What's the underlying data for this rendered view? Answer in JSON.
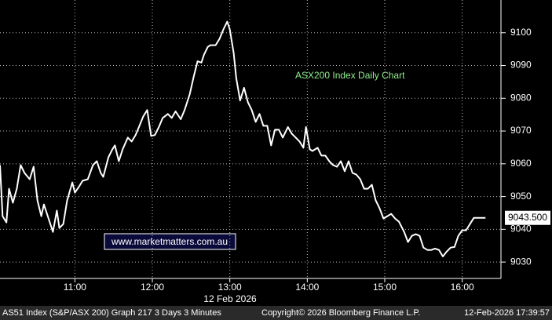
{
  "chart_data": {
    "type": "line",
    "color": "#ffffff",
    "grid": true,
    "xlabel": "12 Feb 2026",
    "annotations": [
      "ASX200 Index Daily Chart",
      "www.marketmatters.com.au"
    ],
    "last_value": {
      "value": 9043.5,
      "label": "9043.500"
    },
    "xlim": [
      602,
      990
    ],
    "xticks": [
      {
        "value": 660,
        "label": "11:00"
      },
      {
        "value": 720,
        "label": "12:00"
      },
      {
        "value": 780,
        "label": "13:00"
      },
      {
        "value": 840,
        "label": "14:00"
      },
      {
        "value": 900,
        "label": "15:00"
      },
      {
        "value": 960,
        "label": "16:00"
      }
    ],
    "ylim": [
      9025,
      9110
    ],
    "yticks": [
      9030,
      9040,
      9050,
      9060,
      9070,
      9080,
      9090,
      9100
    ],
    "x": [
      602,
      604,
      607,
      609,
      612,
      615,
      618,
      621,
      625,
      628,
      631,
      634,
      636,
      640,
      643,
      646,
      648,
      651,
      654,
      658,
      660,
      663,
      666,
      670,
      674,
      677,
      680,
      682,
      686,
      689,
      691,
      694,
      697,
      701,
      704,
      707,
      710,
      713,
      716,
      719,
      722,
      725,
      728,
      732,
      735,
      738,
      742,
      745,
      749,
      752,
      755,
      758,
      760,
      763,
      765,
      769,
      772,
      775,
      778,
      780,
      783,
      785,
      788,
      791,
      794,
      797,
      800,
      803,
      806,
      809,
      812,
      815,
      818,
      821,
      825,
      828,
      831,
      834,
      837,
      839,
      842,
      844,
      848,
      851,
      854,
      857,
      860,
      863,
      866,
      869,
      872,
      875,
      878,
      881,
      884,
      887,
      890,
      893,
      896,
      899,
      902,
      905,
      908,
      911,
      915,
      918,
      921,
      924,
      927,
      930,
      933,
      936,
      939,
      942,
      945,
      948,
      951,
      954,
      957,
      960,
      963,
      966,
      969,
      972,
      975,
      978
    ],
    "values": [
      9059.6,
      9044.0,
      9042.1,
      9052.4,
      9048.1,
      9052.4,
      9059.6,
      9057.2,
      9055.3,
      9059.1,
      9048.8,
      9044.0,
      9047.6,
      9042.8,
      9039.2,
      9045.7,
      9040.4,
      9041.6,
      9048.8,
      9054.3,
      9051.2,
      9052.9,
      9054.8,
      9055.3,
      9059.6,
      9060.8,
      9057.2,
      9056.0,
      9062.0,
      9064.4,
      9065.6,
      9060.8,
      9064.4,
      9068.0,
      9066.8,
      9068.8,
      9071.6,
      9074.5,
      9076.4,
      9068.5,
      9068.8,
      9071.2,
      9074.0,
      9075.2,
      9074.0,
      9076.0,
      9073.6,
      9076.4,
      9081.3,
      9086.5,
      9091.3,
      9090.9,
      9093.3,
      9095.7,
      9096.2,
      9096.2,
      9098.1,
      9101.0,
      9103.4,
      9101.0,
      9093.8,
      9086.1,
      9079.3,
      9083.2,
      9078.8,
      9076.4,
      9072.8,
      9075.2,
      9071.6,
      9071.6,
      9065.6,
      9070.4,
      9070.4,
      9068.0,
      9071.2,
      9069.2,
      9068.0,
      9066.8,
      9064.9,
      9071.2,
      9064.4,
      9063.9,
      9064.9,
      9062.5,
      9062.5,
      9060.8,
      9059.6,
      9059.1,
      9060.8,
      9057.7,
      9060.8,
      9057.2,
      9056.7,
      9055.3,
      9052.4,
      9052.4,
      9053.6,
      9048.8,
      9046.4,
      9043.3,
      9044.0,
      9044.7,
      9043.3,
      9042.3,
      9039.2,
      9036.1,
      9038.0,
      9038.5,
      9038.0,
      9034.4,
      9033.7,
      9033.7,
      9034.1,
      9033.7,
      9031.7,
      9033.2,
      9034.4,
      9034.6,
      9038.0,
      9039.7,
      9039.7,
      9041.6,
      9043.5,
      9043.5,
      9043.5,
      9043.5
    ]
  },
  "footer": {
    "left": "AS51 Index (S&P/ASX 200) Graph 217 3 Days 3 Minutes",
    "center": "Copyright© 2026 Bloomberg Finance L.P.",
    "right": "12-Feb-2026 17:39:57"
  }
}
